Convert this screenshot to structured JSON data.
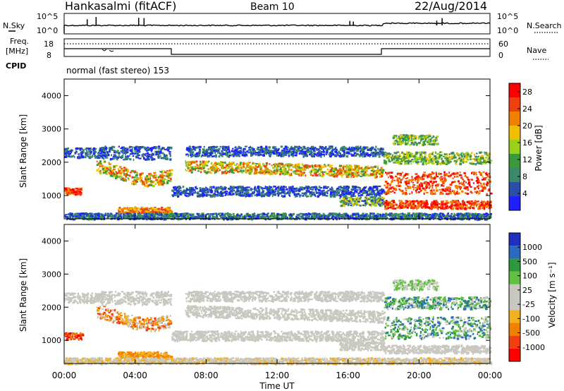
{
  "header": {
    "station": "Hankasalmi (fitACF)",
    "beam": "Beam 10",
    "date": "22/Aug/2014"
  },
  "sky_panel": {
    "left_label": "N.Sky",
    "right_label": "N.Search",
    "left_ticks": [
      "10^5",
      "10^0"
    ],
    "right_ticks": [
      "10^5",
      "10^0"
    ]
  },
  "freq_panel": {
    "left_label_1": "Freq.",
    "left_label_2": "[MHz]",
    "right_label": "Nave",
    "left_ticks": [
      "18",
      "8"
    ],
    "right_ticks": [
      "60",
      "0"
    ]
  },
  "cpid": {
    "label": "CPID",
    "value": "normal (fast stereo) 153"
  },
  "colors": {
    "power": [
      "#1f1fff",
      "#2850a8",
      "#3a8a6a",
      "#3a9a3a",
      "#9ad01a",
      "#f0c000",
      "#f08000",
      "#f04010",
      "#ff0000"
    ],
    "velocity": [
      "#ff0000",
      "#f04010",
      "#f08000",
      "#f0b020",
      "#c8c8c0",
      "#c8c8c0",
      "#60c040",
      "#2a9a3a",
      "#2a6ac0",
      "#1f2fc0"
    ]
  },
  "chart_data": [
    {
      "type": "heatmap",
      "title": "Power",
      "xlabel": "Time UT",
      "ylabel": "Slant Range [km]",
      "x_ticks": [
        "00:00",
        "04:00",
        "08:00",
        "12:00",
        "16:00",
        "20:00",
        "00:00"
      ],
      "y_ticks": [
        "1000",
        "2000",
        "3000",
        "4000"
      ],
      "ylim": [
        300,
        4500
      ],
      "colorbar": {
        "label": "Power [dB]",
        "ticks": [
          "4",
          "8",
          "12",
          "16",
          "20",
          "24",
          "28"
        ],
        "range": [
          0,
          30
        ]
      }
    },
    {
      "type": "heatmap",
      "title": "Velocity",
      "xlabel": "Time UT",
      "ylabel": "Slant Range [km]",
      "x_ticks": [
        "00:00",
        "04:00",
        "08:00",
        "12:00",
        "16:00",
        "20:00",
        "00:00"
      ],
      "y_ticks": [
        "1000",
        "2000",
        "3000",
        "4000"
      ],
      "ylim": [
        300,
        4500
      ],
      "colorbar": {
        "label": "Velocity [m s⁻¹]",
        "ticks": [
          "1000",
          "500",
          "100",
          "25",
          "-25",
          "-100",
          "-500",
          "-1000"
        ]
      }
    }
  ]
}
